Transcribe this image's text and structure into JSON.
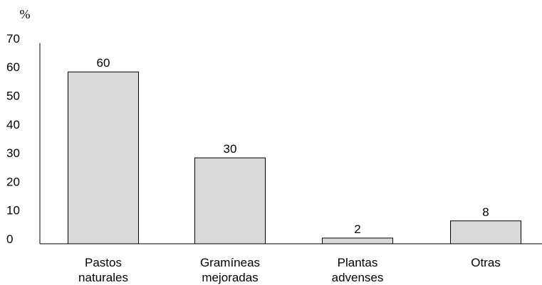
{
  "chart_data": {
    "type": "bar",
    "y_unit": "%",
    "categories": [
      [
        "Pastos",
        "naturales"
      ],
      [
        "Gramíneas",
        "mejoradas"
      ],
      [
        "Plantas",
        "advenses"
      ],
      [
        "Otras"
      ]
    ],
    "values": [
      60,
      30,
      2,
      8
    ],
    "data_labels": [
      "60",
      "30",
      "2",
      "8"
    ],
    "ylim": [
      0,
      70
    ],
    "yticks": [
      0,
      10,
      20,
      30,
      40,
      50,
      60,
      70
    ],
    "grid": false,
    "colors": {
      "bar_fill": "#d9d9d9",
      "bar_stroke": "#000000",
      "axis": "#000000"
    }
  }
}
